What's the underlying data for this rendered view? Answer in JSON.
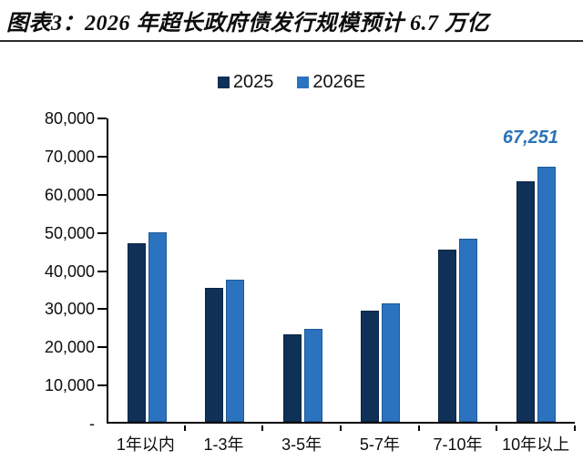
{
  "title": "图表3：2026 年超长政府债发行规模预计 6.7 万亿",
  "colors": {
    "series_2025": "#103157",
    "series_2026e": "#2b73be",
    "annotation_text": "#2a73b8",
    "axis": "#000000",
    "title_text": "#0d0d0d"
  },
  "chart_data": {
    "type": "bar",
    "title": "图表3：2026 年超长政府债发行规模预计 6.7 万亿",
    "categories": [
      "1年以内",
      "1-3年",
      "3-5年",
      "5-7年",
      "7-10年",
      "10年以上"
    ],
    "series": [
      {
        "name": "2025",
        "color": "#103157",
        "values": [
          47000,
          35200,
          23000,
          29300,
          45500,
          63400
        ]
      },
      {
        "name": "2026E",
        "color": "#2b73be",
        "values": [
          50000,
          37500,
          24500,
          31200,
          48300,
          67251
        ]
      }
    ],
    "xlabel": "",
    "ylabel": "",
    "ylim": [
      0,
      80000
    ],
    "y_tick_labels": [
      "80,000",
      "70,000",
      "60,000",
      "50,000",
      "40,000",
      "30,000",
      "20,000",
      "10,000",
      "-"
    ],
    "grid": false,
    "legend_position": "top-center",
    "annotation": {
      "text": "67,251",
      "series": "2026E",
      "category": "10年以上"
    }
  }
}
